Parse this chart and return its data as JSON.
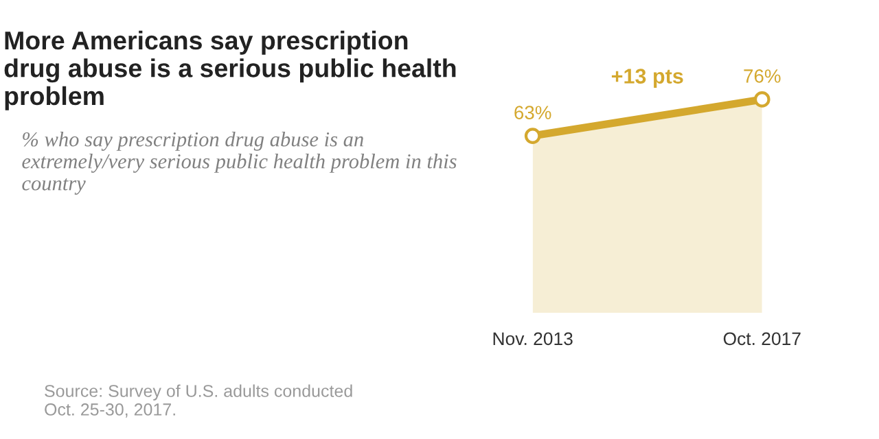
{
  "chart_data": {
    "type": "area",
    "title": "More Americans say prescription drug abuse is a serious public health problem",
    "subtitle": "% who say prescription drug abuse is an extremely/very serious public health problem in this country",
    "categories": [
      "Nov. 2013",
      "Oct. 2017"
    ],
    "series": [
      {
        "color": "#d4a82e",
        "values": [
          63,
          76
        ],
        "value_labels": [
          "63%",
          "76%"
        ]
      }
    ],
    "marker": "circle",
    "annotations": [
      "+13 pts",
      "Source: Survey of U.S. adults conducted\nOct. 25-30, 2017."
    ],
    "grid": false,
    "legend": false
  }
}
